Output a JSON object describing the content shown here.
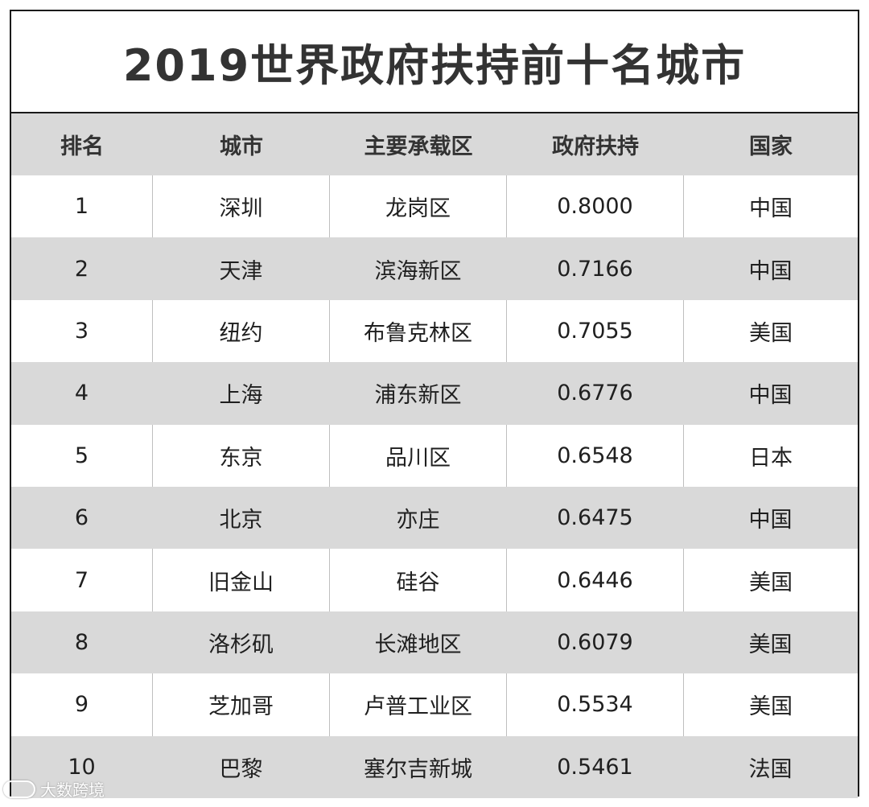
{
  "title": "2019世界政府扶持前十名城市",
  "header": [
    "排名",
    "城市",
    "主要承载区",
    "政府扶持",
    "国家"
  ],
  "rows": [
    [
      "1",
      "深圳",
      "龙岗区",
      "0.8000",
      "中国"
    ],
    [
      "2",
      "天津",
      "滨海新区",
      "0.7166",
      "中国"
    ],
    [
      "3",
      "纽约",
      "布鲁克林区",
      "0.7055",
      "美国"
    ],
    [
      "4",
      "上海",
      "浦东新区",
      "0.6776",
      "中国"
    ],
    [
      "5",
      "东京",
      "品川区",
      "0.6548",
      "日本"
    ],
    [
      "6",
      "北京",
      "亦庄",
      "0.6475",
      "中国"
    ],
    [
      "7",
      "旧金山",
      "硅谷",
      "0.6446",
      "美国"
    ],
    [
      "8",
      "洛杉矶",
      "长滩地区",
      "0.6079",
      "美国"
    ],
    [
      "9",
      "芝加哥",
      "卢普工业区",
      "0.5534",
      "美国"
    ],
    [
      "10",
      "巴黎",
      "塞尔吉新城",
      "0.5461",
      "法国"
    ]
  ],
  "watermark": "大数跨境",
  "colors": {
    "header_bg": "#d9d9d9",
    "shaded_row_bg": "#d9d9d9",
    "border": "#1a1a1a"
  }
}
